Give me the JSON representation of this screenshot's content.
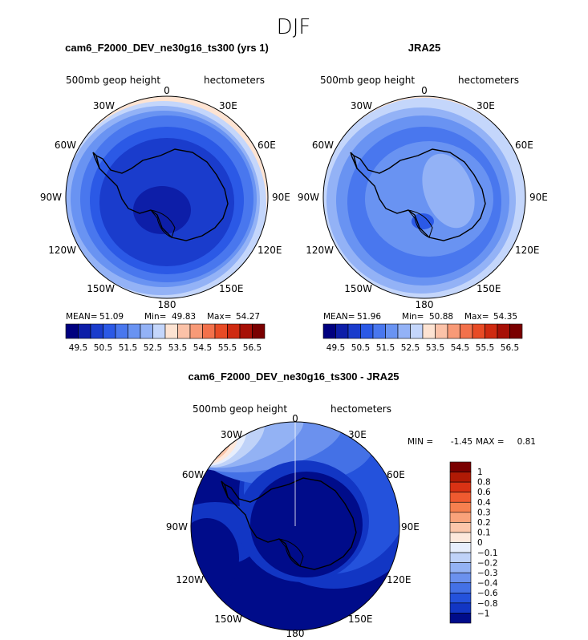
{
  "figure": {
    "title": "DJF"
  },
  "panels": [
    {
      "id": "model",
      "title": "cam6_F2000_DEV_ne30g16_ts300 (yrs 1)",
      "field_label": "500mb geop height",
      "units": "hectometers",
      "lon_labels": [
        "0",
        "30E",
        "60E",
        "90E",
        "120E",
        "150E",
        "180",
        "150W",
        "120W",
        "90W",
        "60W",
        "30W"
      ],
      "stats": {
        "mean_label": "MEAN=",
        "mean": "51.09",
        "min_label": "Min=",
        "min": "49.83",
        "max_label": "Max=",
        "max": "54.27"
      },
      "colorbar": {
        "tick_labels": [
          "49.5",
          "50.5",
          "51.5",
          "52.5",
          "53.5",
          "54.5",
          "55.5",
          "56.5"
        ],
        "colors": [
          "#00007f",
          "#0d1ea8",
          "#1a3ccc",
          "#2b59e6",
          "#4977ee",
          "#6993f2",
          "#93b2f6",
          "#c4d6fb",
          "#fde3d2",
          "#fbc2a8",
          "#f89a77",
          "#f3714b",
          "#e84b25",
          "#cf2a10",
          "#a71006",
          "#7a0000"
        ]
      },
      "contour_levels_hm": [
        50.0,
        50.25,
        50.5,
        50.75,
        51.0,
        51.25,
        51.5,
        52.0,
        52.5,
        53.0,
        53.5
      ]
    },
    {
      "id": "obs",
      "title": "JRA25",
      "field_label": "500mb geop height",
      "units": "hectometers",
      "lon_labels": [
        "0",
        "30E",
        "60E",
        "90E",
        "120E",
        "150E",
        "180",
        "150W",
        "120W",
        "90W",
        "60W",
        "30W"
      ],
      "stats": {
        "mean_label": "MEAN=",
        "mean": "51.96",
        "min_label": "Min=",
        "min": "50.88",
        "max_label": "Max=",
        "max": "54.35"
      },
      "colorbar": {
        "tick_labels": [
          "49.5",
          "50.5",
          "51.5",
          "52.5",
          "53.5",
          "54.5",
          "55.5",
          "56.5"
        ],
        "colors": [
          "#00007f",
          "#0d1ea8",
          "#1a3ccc",
          "#2b59e6",
          "#4977ee",
          "#6993f2",
          "#93b2f6",
          "#c4d6fb",
          "#fde3d2",
          "#fbc2a8",
          "#f89a77",
          "#f3714b",
          "#e84b25",
          "#cf2a10",
          "#a71006",
          "#7a0000"
        ]
      },
      "contour_levels_hm": [
        51.0,
        51.25,
        51.5,
        51.75,
        52.0,
        52.5,
        53.0,
        53.5
      ]
    },
    {
      "id": "diff",
      "title": "cam6_F2000_DEV_ne30g16_ts300 - JRA25",
      "field_label": "500mb geop height",
      "units": "hectometers",
      "lon_labels": [
        "0",
        "30E",
        "60E",
        "90E",
        "120E",
        "150E",
        "180",
        "150W",
        "120W",
        "90W",
        "60W",
        "30W"
      ],
      "stats": {
        "min_label": "MIN =",
        "min": "-1.45",
        "max_label": "MAX =",
        "max": "0.81"
      },
      "colorbar": {
        "tick_labels": [
          "1",
          "0.8",
          "0.6",
          "0.4",
          "0.3",
          "0.2",
          "0.1",
          "0",
          "−0.1",
          "−0.2",
          "−0.3",
          "−0.4",
          "−0.6",
          "−0.8",
          "−1"
        ],
        "colors": [
          "#7a0000",
          "#b01a05",
          "#d93214",
          "#ef5a30",
          "#f6804f",
          "#f9a27a",
          "#fcc6aa",
          "#fde8dc",
          "#e7eefc",
          "#bfd2f8",
          "#93b2f4",
          "#6b91ee",
          "#4471e6",
          "#2452dc",
          "#1236c4",
          "#000c8a"
        ]
      },
      "contour_levels_hm": [
        -1.0,
        -0.8,
        -0.6,
        -0.4,
        -0.2,
        0.0,
        0.2,
        0.4,
        0.6
      ]
    }
  ]
}
